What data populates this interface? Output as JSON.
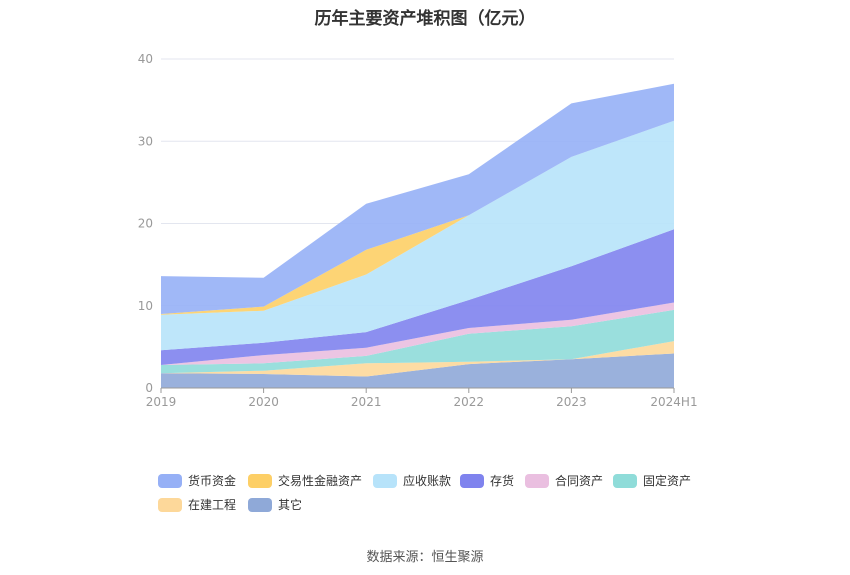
{
  "title": "历年主要资产堆积图（亿元）",
  "source": "数据来源：恒生聚源",
  "chart_data": {
    "type": "area",
    "stacked": true,
    "categories": [
      "2019",
      "2020",
      "2021",
      "2022",
      "2023",
      "2024H1"
    ],
    "ylim": [
      0,
      40
    ],
    "yticks": [
      0,
      10,
      20,
      30,
      40
    ],
    "grid": true,
    "legend_position": "bottom",
    "series": [
      {
        "name": "其它",
        "color": "#8fa9d8",
        "values": [
          1.8,
          1.7,
          1.4,
          2.9,
          3.5,
          4.2
        ]
      },
      {
        "name": "在建工程",
        "color": "#fdd89a",
        "values": [
          0.0,
          0.4,
          1.6,
          0.3,
          0.0,
          1.5
        ]
      },
      {
        "name": "固定资产",
        "color": "#8fdcd9",
        "values": [
          1.0,
          0.9,
          0.9,
          3.4,
          4.0,
          3.8
        ]
      },
      {
        "name": "合同资产",
        "color": "#eabfe0",
        "values": [
          0.0,
          1.0,
          1.0,
          0.7,
          0.8,
          0.9
        ]
      },
      {
        "name": "存货",
        "color": "#7f83ee",
        "values": [
          1.8,
          1.5,
          1.9,
          3.4,
          6.5,
          8.9
        ]
      },
      {
        "name": "应收账款",
        "color": "#b7e3fa",
        "values": [
          4.3,
          3.9,
          7.0,
          10.3,
          13.3,
          13.2
        ]
      },
      {
        "name": "交易性金融资产",
        "color": "#fdcf66",
        "values": [
          0.1,
          0.5,
          3.0,
          0.0,
          0.0,
          0.0
        ]
      },
      {
        "name": "货币资金",
        "color": "#96b0f6",
        "values": [
          4.6,
          3.5,
          5.6,
          5.0,
          6.5,
          4.5
        ]
      }
    ],
    "legend_order": [
      "货币资金",
      "交易性金融资产",
      "应收账款",
      "存货",
      "合同资产",
      "固定资产",
      "在建工程",
      "其它"
    ]
  }
}
